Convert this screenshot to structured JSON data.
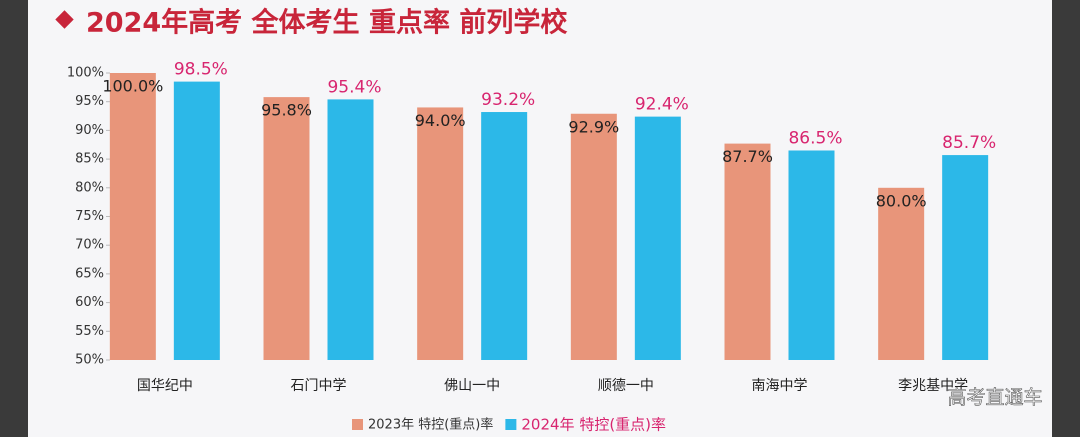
{
  "chart_data": {
    "type": "bar",
    "title": "2024年高考 全体考生 重点率 前列学校",
    "categories": [
      "国华纪中",
      "石门中学",
      "佛山一中",
      "顺德一中",
      "南海中学",
      "李兆基中学"
    ],
    "series": [
      {
        "name": "2023年 特控(重点)率",
        "color": "#e8957a",
        "label_color": "#222222",
        "values": [
          100.0,
          95.8,
          94.0,
          92.9,
          87.7,
          80.0
        ],
        "value_labels": [
          "100.0%",
          "95.8%",
          "94.0%",
          "92.9%",
          "87.7%",
          "80.0%"
        ]
      },
      {
        "name": "2024年 特控(重点)率",
        "color": "#2cb8e8",
        "label_color": "#d8256f",
        "values": [
          98.5,
          95.4,
          93.2,
          92.4,
          86.5,
          85.7
        ],
        "value_labels": [
          "98.5%",
          "95.4%",
          "93.2%",
          "92.4%",
          "86.5%",
          "85.7%"
        ]
      }
    ],
    "ylim": [
      50,
      100
    ],
    "yticks": [
      {
        "value": 50,
        "label": "50%"
      },
      {
        "value": 55,
        "label": "55%"
      },
      {
        "value": 60,
        "label": "60%"
      },
      {
        "value": 65,
        "label": "65%"
      },
      {
        "value": 70,
        "label": "70%"
      },
      {
        "value": 75,
        "label": "75%"
      },
      {
        "value": 80,
        "label": "80%"
      },
      {
        "value": 85,
        "label": "85%"
      },
      {
        "value": 90,
        "label": "90%"
      },
      {
        "value": 95,
        "label": "95%"
      },
      {
        "value": 100,
        "label": "100%"
      }
    ],
    "watermark": "高考直通车"
  }
}
